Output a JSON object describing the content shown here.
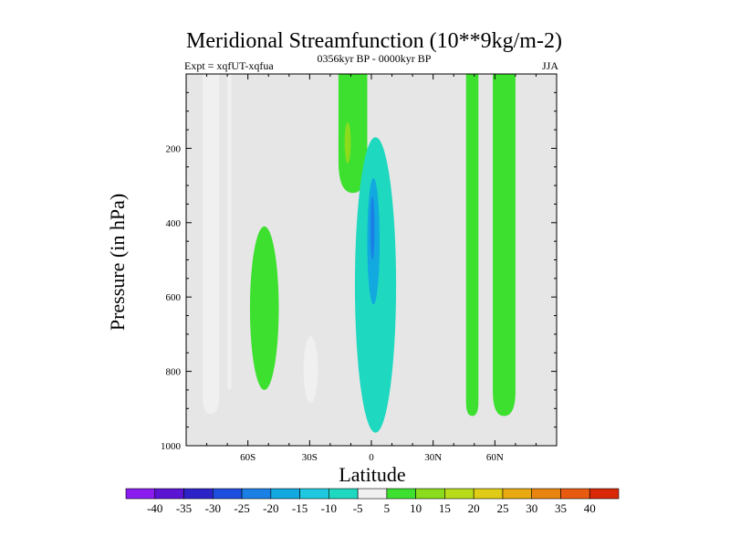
{
  "chart_data": {
    "type": "contour",
    "title": "Meridional Streamfunction (10**9kg/m-2)",
    "left_string": "Expt = xqfUT-xqfua",
    "center_string": "0356kyr BP - 0000kyr BP",
    "right_string": "JJA",
    "xlabel": "Latitude",
    "ylabel": "Pressure (in hPa)",
    "x_ticks": [
      {
        "value": -60,
        "label": "60S"
      },
      {
        "value": -30,
        "label": "30S"
      },
      {
        "value": 0,
        "label": "0"
      },
      {
        "value": 30,
        "label": "30N"
      },
      {
        "value": 60,
        "label": "60N"
      }
    ],
    "y_ticks": [
      {
        "value": 200,
        "label": "200"
      },
      {
        "value": 400,
        "label": "400"
      },
      {
        "value": 600,
        "label": "600"
      },
      {
        "value": 800,
        "label": "800"
      },
      {
        "value": 1000,
        "label": "1000"
      }
    ],
    "xlim": [
      -90,
      90
    ],
    "ylim": [
      0,
      1000
    ],
    "background_color": "#e6e6e6",
    "colorbar": {
      "levels": [
        "-40",
        "-35",
        "-30",
        "-25",
        "-20",
        "-15",
        "-10",
        "-5",
        "5",
        "10",
        "15",
        "20",
        "25",
        "30",
        "35",
        "40"
      ],
      "colors": [
        "#8a1cf0",
        "#5a14d2",
        "#2c22c8",
        "#1e4ee0",
        "#1a80e6",
        "#12a8e0",
        "#1ec8e0",
        "#1ed8c0",
        "#f0f0f0",
        "#3ee030",
        "#8adc1c",
        "#b8dc1a",
        "#e0cc14",
        "#e8aa10",
        "#e88410",
        "#e85a10",
        "#d82808"
      ]
    },
    "regions": [
      {
        "name": "sh-high-lat-negative-band",
        "value": -5,
        "lat_range": [
          -82,
          -74
        ],
        "p_range": [
          0,
          915
        ]
      },
      {
        "name": "sh-narrow-negative-strip",
        "value": -5,
        "lat_range": [
          -70,
          -68
        ],
        "p_range": [
          0,
          850
        ]
      },
      {
        "name": "sh-midlat-positive-cell",
        "value": 5,
        "lat_range": [
          -59,
          -45
        ],
        "p_range": [
          410,
          850
        ]
      },
      {
        "name": "sh-subtropic-negative-cell",
        "value": -5,
        "lat_range": [
          -33,
          -26
        ],
        "p_range": [
          705,
          885
        ]
      },
      {
        "name": "sh-upper-positive-plume",
        "value": 5,
        "lat_range": [
          -16,
          -2
        ],
        "p_range": [
          0,
          320
        ]
      },
      {
        "name": "upper-positive-core",
        "value": 10,
        "lat_range": [
          -13,
          -10
        ],
        "p_range": [
          130,
          240
        ]
      },
      {
        "name": "equatorial-negative-cell",
        "value": -10,
        "lat_range": [
          -8,
          12
        ],
        "p_range": [
          170,
          965
        ]
      },
      {
        "name": "equatorial-negative-core",
        "value": -20,
        "lat_range": [
          -2,
          4
        ],
        "p_range": [
          280,
          620
        ]
      },
      {
        "name": "equatorial-minimum",
        "value": -25,
        "lat_range": [
          -0.5,
          1.5
        ],
        "p_range": [
          330,
          500
        ]
      },
      {
        "name": "nh-midlat-positive-band",
        "value": 5,
        "lat_range": [
          46,
          52
        ],
        "p_range": [
          0,
          920
        ]
      },
      {
        "name": "nh-highlat-positive-band",
        "value": 5,
        "lat_range": [
          59,
          70
        ],
        "p_range": [
          0,
          920
        ]
      }
    ]
  }
}
